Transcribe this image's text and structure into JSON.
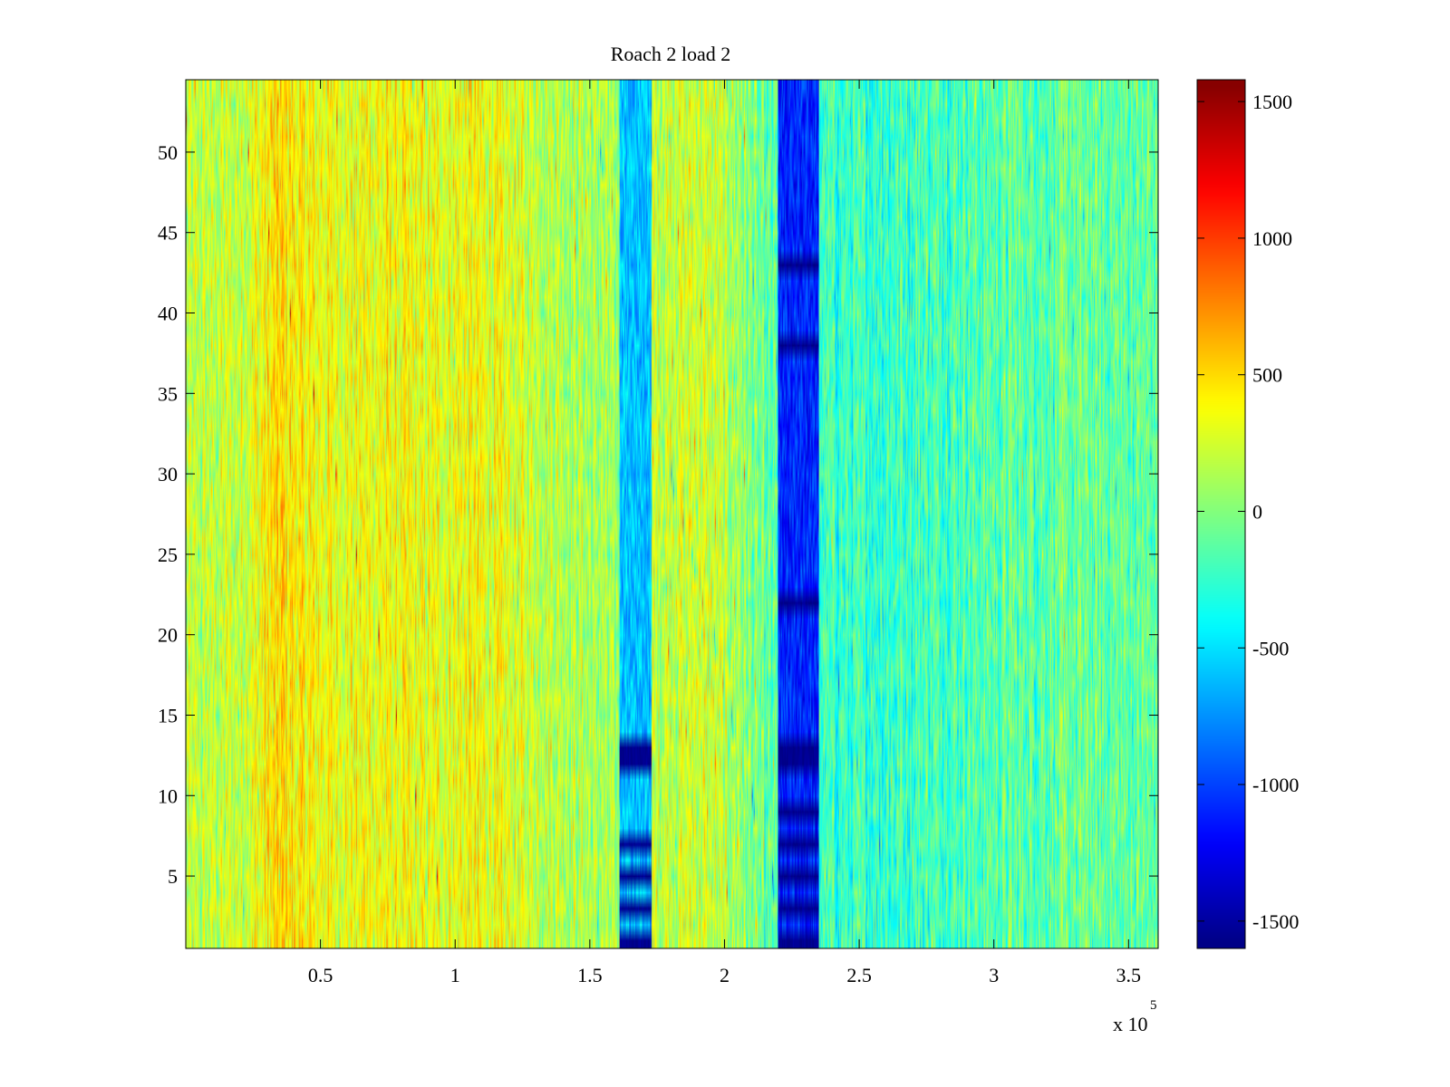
{
  "chart_data": {
    "type": "heatmap",
    "title": "Roach 2 load 2",
    "xlabel": "",
    "ylabel": "",
    "x_exponent_label": {
      "base": "x 10",
      "power": "5"
    },
    "xlim": [
      0,
      361000
    ],
    "ylim": [
      0.5,
      54.5
    ],
    "x_ticks": [
      {
        "value": 50000,
        "label": "0.5"
      },
      {
        "value": 100000,
        "label": "1"
      },
      {
        "value": 150000,
        "label": "1.5"
      },
      {
        "value": 200000,
        "label": "2"
      },
      {
        "value": 250000,
        "label": "2.5"
      },
      {
        "value": 300000,
        "label": "3"
      },
      {
        "value": 350000,
        "label": "3.5"
      }
    ],
    "y_ticks": [
      {
        "value": 5,
        "label": "5"
      },
      {
        "value": 10,
        "label": "10"
      },
      {
        "value": 15,
        "label": "15"
      },
      {
        "value": 20,
        "label": "20"
      },
      {
        "value": 25,
        "label": "25"
      },
      {
        "value": 30,
        "label": "30"
      },
      {
        "value": 35,
        "label": "35"
      },
      {
        "value": 40,
        "label": "40"
      },
      {
        "value": 45,
        "label": "45"
      },
      {
        "value": 50,
        "label": "50"
      }
    ],
    "rows": 54,
    "clim": [
      -1600,
      1580
    ],
    "colormap": "jet",
    "colorbar": {
      "ticks": [
        {
          "value": 1500,
          "label": "1500"
        },
        {
          "value": 1000,
          "label": "1000"
        },
        {
          "value": 500,
          "label": "500"
        },
        {
          "value": 0,
          "label": "0"
        },
        {
          "value": -500,
          "label": "-500"
        },
        {
          "value": -1000,
          "label": "-1000"
        },
        {
          "value": -1500,
          "label": "-1500"
        }
      ]
    },
    "column_profile": [
      {
        "x": 0,
        "v": 150
      },
      {
        "x": 20000,
        "v": 220
      },
      {
        "x": 35000,
        "v": 480
      },
      {
        "x": 45000,
        "v": 380
      },
      {
        "x": 60000,
        "v": 330
      },
      {
        "x": 75000,
        "v": 360
      },
      {
        "x": 90000,
        "v": 300
      },
      {
        "x": 105000,
        "v": 360
      },
      {
        "x": 120000,
        "v": 280
      },
      {
        "x": 140000,
        "v": 180
      },
      {
        "x": 160000,
        "v": 60
      },
      {
        "x": 175000,
        "v": 220
      },
      {
        "x": 190000,
        "v": 260
      },
      {
        "x": 205000,
        "v": 100
      },
      {
        "x": 215000,
        "v": -150
      },
      {
        "x": 245000,
        "v": -250
      },
      {
        "x": 270000,
        "v": -200
      },
      {
        "x": 300000,
        "v": -140
      },
      {
        "x": 330000,
        "v": -100
      },
      {
        "x": 361000,
        "v": -120
      }
    ],
    "dips": [
      {
        "x_range": [
          161000,
          173000
        ],
        "value": -600,
        "strong_rows": [
          1,
          3,
          5,
          7,
          12,
          13
        ],
        "strong_value": -1550
      },
      {
        "x_range": [
          220000,
          235000
        ],
        "value": -1100,
        "strong_rows": [
          1,
          3,
          5,
          7,
          9,
          12,
          13,
          22,
          38,
          43
        ],
        "strong_value": -1550
      }
    ]
  }
}
